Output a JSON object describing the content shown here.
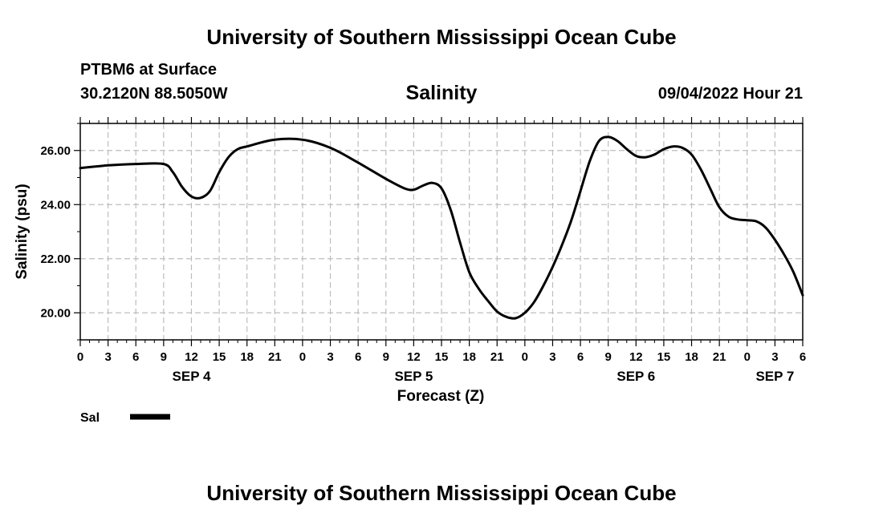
{
  "header": {
    "main_title": "University of Southern Mississippi Ocean Cube",
    "station": "PTBM6 at Surface",
    "coords": "30.2120N  88.5050W",
    "variable": "Salinity",
    "datetime": "09/04/2022 Hour 21"
  },
  "footer": {
    "title": "University of Southern Mississippi Ocean Cube"
  },
  "legend": {
    "label": "Sal",
    "color": "#000000"
  },
  "chart_data": {
    "type": "line",
    "title": "Salinity",
    "xlabel": "Forecast (Z)",
    "ylabel": "Salinity (psu)",
    "xlim": [
      0,
      78
    ],
    "ylim": [
      19,
      27
    ],
    "grid": true,
    "x_tick_labels": [
      "0",
      "3",
      "6",
      "9",
      "12",
      "15",
      "18",
      "21",
      "0",
      "3",
      "6",
      "9",
      "12",
      "15",
      "18",
      "21",
      "0",
      "3",
      "6",
      "9",
      "12",
      "15",
      "18",
      "21",
      "0",
      "3",
      "6"
    ],
    "y_ticks": [
      20,
      22,
      24,
      26
    ],
    "y_tick_labels": [
      "20.00",
      "22.00",
      "24.00",
      "26.00"
    ],
    "date_labels": [
      {
        "label": "SEP 4",
        "hour": 12
      },
      {
        "label": "SEP 5",
        "hour": 36
      },
      {
        "label": "SEP 6",
        "hour": 60
      },
      {
        "label": "SEP 7",
        "hour": 75
      }
    ],
    "series": [
      {
        "name": "Sal",
        "x": [
          0,
          3,
          6,
          9,
          10,
          11,
          12,
          13,
          14,
          15,
          16,
          17,
          18,
          21,
          24,
          27,
          30,
          33,
          35,
          36,
          37,
          38,
          39,
          40,
          41,
          42,
          43,
          44,
          45,
          46,
          47,
          48,
          49,
          50,
          51,
          52,
          53,
          54,
          55,
          56,
          57,
          58,
          59,
          60,
          61,
          62,
          63,
          64,
          65,
          66,
          67,
          68,
          69,
          70,
          71,
          72,
          73,
          74,
          75,
          76,
          77,
          78
        ],
        "y": [
          25.35,
          25.45,
          25.5,
          25.5,
          25.2,
          24.65,
          24.3,
          24.25,
          24.5,
          25.2,
          25.75,
          26.05,
          26.15,
          26.4,
          26.4,
          26.1,
          25.55,
          24.95,
          24.6,
          24.55,
          24.7,
          24.8,
          24.6,
          23.8,
          22.6,
          21.5,
          20.9,
          20.45,
          20.05,
          19.85,
          19.8,
          20.0,
          20.4,
          21.0,
          21.7,
          22.5,
          23.4,
          24.5,
          25.6,
          26.35,
          26.5,
          26.35,
          26.05,
          25.8,
          25.75,
          25.85,
          26.05,
          26.15,
          26.1,
          25.85,
          25.3,
          24.6,
          23.9,
          23.55,
          23.45,
          23.42,
          23.38,
          23.15,
          22.7,
          22.15,
          21.5,
          20.65
        ]
      }
    ]
  }
}
